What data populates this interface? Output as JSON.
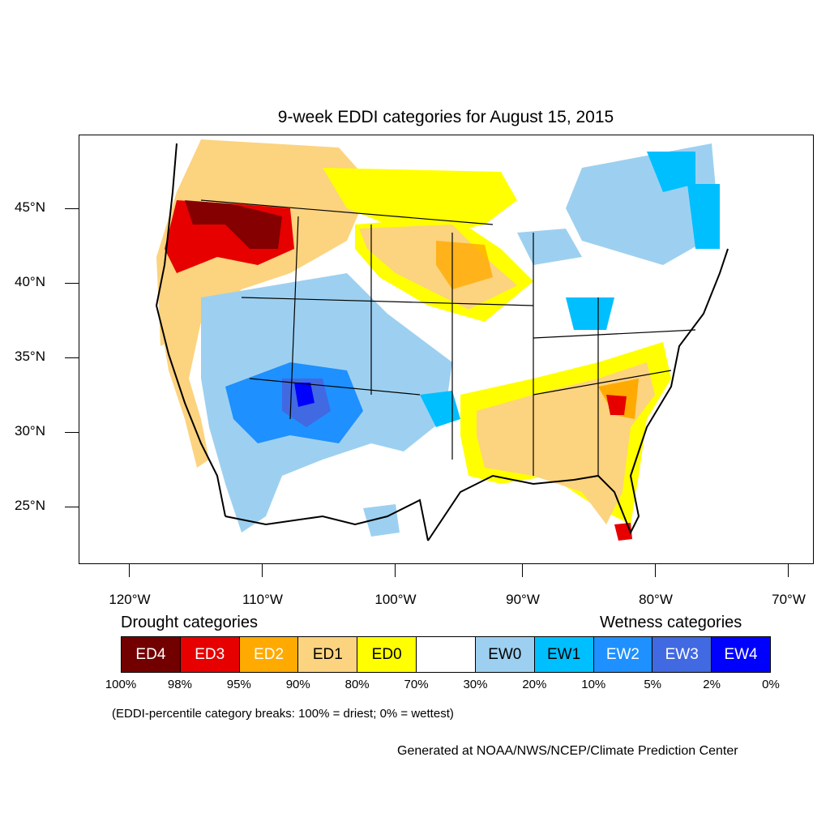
{
  "title": "9-week EDDI categories for August 15, 2015",
  "map": {
    "lat_labels": [
      "45°N",
      "40°N",
      "35°N",
      "30°N",
      "25°N"
    ],
    "lon_labels": [
      "120°W",
      "110°W",
      "100°W",
      "90°W",
      "80°W",
      "70°W"
    ]
  },
  "legend": {
    "drought_heading": "Drought categories",
    "wetness_heading": "Wetness categories",
    "categories": [
      {
        "label": "ED4",
        "color": "#730000",
        "text_color": "#ffffff"
      },
      {
        "label": "ED3",
        "color": "#e60000",
        "text_color": "#ffffff"
      },
      {
        "label": "ED2",
        "color": "#ffaa00",
        "text_color": "#ffffff"
      },
      {
        "label": "ED1",
        "color": "#fcd37f",
        "text_color": "#000000"
      },
      {
        "label": "ED0",
        "color": "#ffff00",
        "text_color": "#000000"
      },
      {
        "label": "",
        "color": "#ffffff",
        "text_color": "#000000"
      },
      {
        "label": "EW0",
        "color": "#9dd0f0",
        "text_color": "#000000"
      },
      {
        "label": "EW1",
        "color": "#00bfff",
        "text_color": "#000000"
      },
      {
        "label": "EW2",
        "color": "#1e90ff",
        "text_color": "#ffffff"
      },
      {
        "label": "EW3",
        "color": "#4169e1",
        "text_color": "#ffffff"
      },
      {
        "label": "EW4",
        "color": "#0000ff",
        "text_color": "#ffffff"
      }
    ],
    "breaks": [
      "100%",
      "98%",
      "95%",
      "90%",
      "80%",
      "70%",
      "30%",
      "20%",
      "10%",
      "5%",
      "2%",
      "0%"
    ]
  },
  "note": "(EDDI-percentile category breaks: 100% = driest; 0% = wettest)",
  "credit": "Generated at NOAA/NWS/NCEP/Climate Prediction Center"
}
